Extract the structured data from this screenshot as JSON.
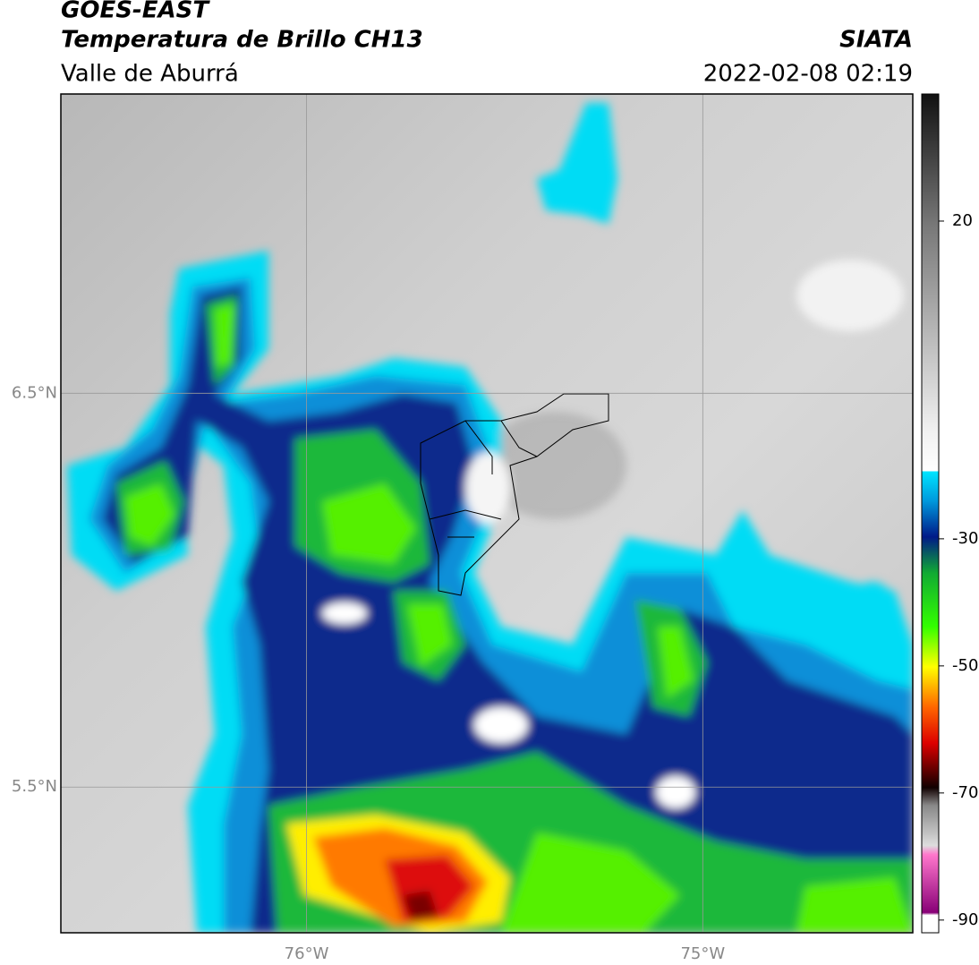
{
  "header": {
    "title": "GOES-EAST",
    "subtitle": "Temperatura de Brillo CH13",
    "region": "Valle de Aburrá",
    "source": "SIATA",
    "timestamp": "2022-02-08 02:19"
  },
  "map": {
    "extent": {
      "lon": [
        -76.62,
        -74.47
      ],
      "lat": [
        5.13,
        7.26
      ]
    },
    "lat_ticks": [
      {
        "value": 6.5,
        "label": "6.5°N"
      },
      {
        "value": 5.5,
        "label": "5.5°N"
      }
    ],
    "lon_ticks": [
      {
        "value": -76,
        "label": "76°W"
      },
      {
        "value": -75,
        "label": "75°W"
      }
    ],
    "grid": true
  },
  "colorbar": {
    "lim": [
      -92,
      40
    ],
    "ticks": [
      20,
      -30,
      -50,
      -70,
      -90
    ]
  }
}
